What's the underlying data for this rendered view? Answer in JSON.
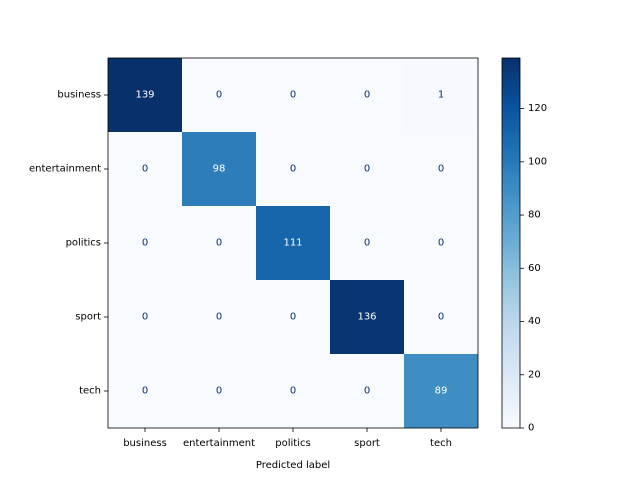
{
  "chart_data": {
    "type": "heatmap",
    "title": "",
    "xlabel": "Predicted label",
    "ylabel": "",
    "x_categories": [
      "business",
      "entertainment",
      "politics",
      "sport",
      "tech"
    ],
    "y_categories": [
      "business",
      "entertainment",
      "politics",
      "sport",
      "tech"
    ],
    "values": [
      [
        139,
        0,
        0,
        0,
        1
      ],
      [
        0,
        98,
        0,
        0,
        0
      ],
      [
        0,
        0,
        111,
        0,
        0
      ],
      [
        0,
        0,
        0,
        136,
        0
      ],
      [
        0,
        0,
        0,
        0,
        89
      ]
    ],
    "colormap": "Blues",
    "colorbar": {
      "range": [
        0,
        139
      ],
      "ticks": [
        "0",
        "20",
        "40",
        "60",
        "80",
        "100",
        "120"
      ]
    },
    "grid": false
  }
}
